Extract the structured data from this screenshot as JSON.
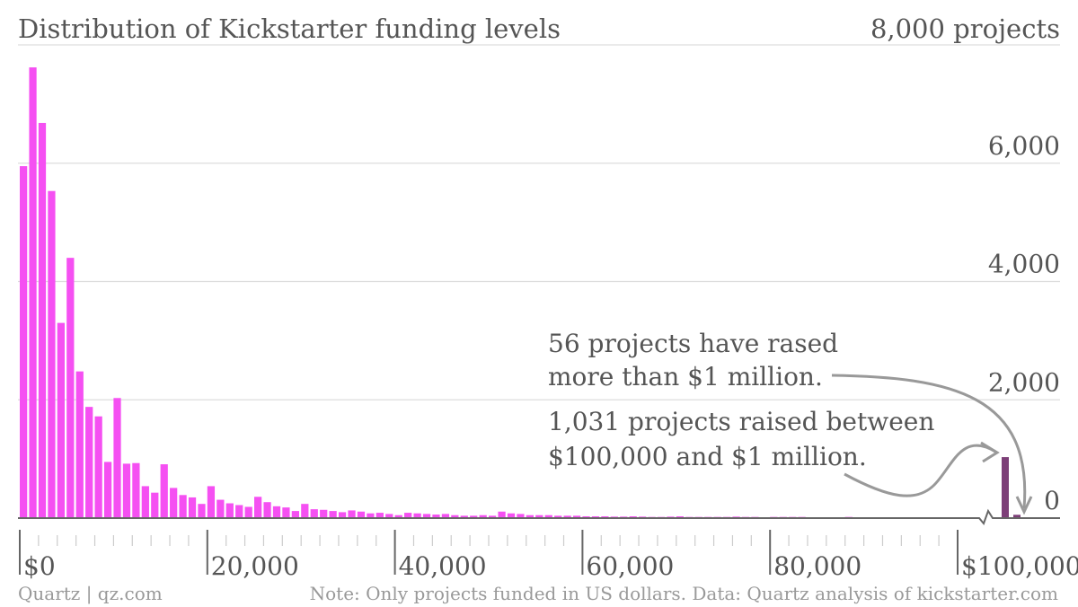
{
  "chart_data": {
    "type": "bar",
    "title": "Distribution of Kickstarter funding levels",
    "ylim": [
      0,
      8000
    ],
    "y_ticks": [
      {
        "value": 0,
        "label": "0"
      },
      {
        "value": 2000,
        "label": "2,000"
      },
      {
        "value": 4000,
        "label": "4,000"
      },
      {
        "value": 6000,
        "label": "6,000"
      },
      {
        "value": 8000,
        "label": "8,000 projects"
      }
    ],
    "x_ticks": [
      {
        "value": 0,
        "label": "$0"
      },
      {
        "value": 20000,
        "label": "20,000"
      },
      {
        "value": 40000,
        "label": "40,000"
      },
      {
        "value": 60000,
        "label": "60,000"
      },
      {
        "value": 80000,
        "label": "80,000"
      },
      {
        "value": 100000,
        "label": "$100,000"
      }
    ],
    "bin_width": 1000,
    "xlim": [
      0,
      100000
    ],
    "grid": true,
    "series": [
      {
        "color": "#f550f2",
        "values": [
          5950,
          7620,
          6680,
          5530,
          3300,
          4400,
          2480,
          1880,
          1720,
          950,
          2030,
          920,
          930,
          540,
          430,
          910,
          510,
          390,
          350,
          240,
          540,
          310,
          250,
          220,
          190,
          360,
          270,
          200,
          180,
          120,
          240,
          150,
          140,
          120,
          100,
          130,
          110,
          80,
          90,
          70,
          50,
          90,
          80,
          70,
          60,
          70,
          50,
          40,
          40,
          50,
          40,
          110,
          80,
          70,
          50,
          50,
          50,
          40,
          40,
          40,
          30,
          30,
          30,
          25,
          25,
          30,
          25,
          20,
          20,
          25,
          30,
          20,
          20,
          20,
          20,
          20,
          25,
          20,
          20,
          15,
          20,
          20,
          20,
          20,
          15,
          15,
          15,
          15,
          20,
          15,
          15,
          15,
          15,
          15,
          10,
          15,
          15,
          10,
          10,
          15
        ]
      }
    ],
    "overflow_bars": [
      {
        "label": "$100,000 and $1 million",
        "value": 1031,
        "color": "#7d3f78"
      },
      {
        "label": "more than $1 million",
        "value": 56,
        "color": "#7d3f78"
      }
    ],
    "annotations": [
      {
        "id": "million",
        "lines": [
          "56 projects have rased",
          "more than $1 million."
        ]
      },
      {
        "id": "between",
        "lines": [
          "1,031 projects raised between",
          "$100,000 and $1 million."
        ]
      }
    ],
    "colors": {
      "bars": "#f550f2",
      "overflow": "#7d3f78",
      "text": "#555555",
      "grid": "#dddddd",
      "axis": "#666666",
      "arrow": "#999999"
    }
  },
  "footer": {
    "source": "Quartz | qz.com",
    "note": "Note: Only projects funded in US dollars. Data: Quartz analysis of kickstarter.com"
  }
}
